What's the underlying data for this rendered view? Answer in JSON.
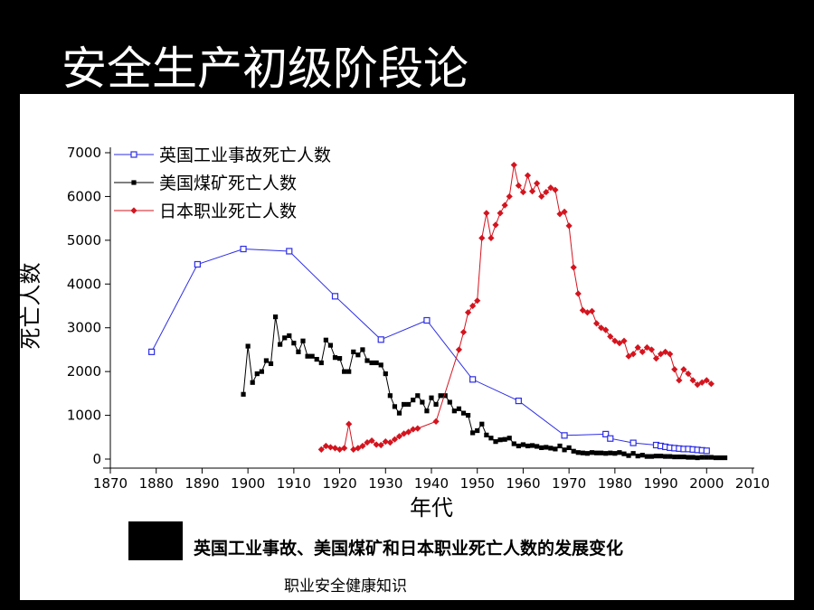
{
  "slide": {
    "title": "安全生产初级阶段论",
    "caption": "英国工业事故、美国煤矿和日本职业死亡人数的发展变化",
    "footer": "职业安全健康知识"
  },
  "chart_data": {
    "type": "line",
    "xlabel": "年代",
    "ylabel": "死亡人数",
    "xlim": [
      1870,
      2010
    ],
    "ylim": [
      0,
      7000
    ],
    "xticks": [
      1870,
      1880,
      1890,
      1900,
      1910,
      1920,
      1930,
      1940,
      1950,
      1960,
      1970,
      1980,
      1990,
      2000,
      2010
    ],
    "yticks": [
      0,
      1000,
      2000,
      3000,
      4000,
      5000,
      6000,
      7000
    ],
    "grid": false,
    "legend_position": "top-left",
    "series": [
      {
        "name": "英国工业事故死亡人数",
        "color": "#2d2de6",
        "marker": "open-square",
        "x": [
          1879,
          1889,
          1899,
          1909,
          1919,
          1929,
          1939,
          1949,
          1959,
          1969,
          1978,
          1979,
          1984,
          1989,
          1990,
          1991,
          1992,
          1993,
          1994,
          1995,
          1996,
          1997,
          1998,
          1999,
          2000
        ],
        "y": [
          2450,
          4450,
          4800,
          4750,
          3720,
          2730,
          3170,
          1820,
          1330,
          540,
          570,
          470,
          370,
          320,
          300,
          280,
          260,
          250,
          240,
          230,
          230,
          220,
          210,
          200,
          190
        ]
      },
      {
        "name": "美国煤矿死亡人数",
        "color": "#000000",
        "marker": "filled-square",
        "x": [
          1899,
          1900,
          1901,
          1902,
          1903,
          1904,
          1905,
          1906,
          1907,
          1908,
          1909,
          1910,
          1911,
          1912,
          1913,
          1914,
          1915,
          1916,
          1917,
          1918,
          1919,
          1920,
          1921,
          1922,
          1923,
          1924,
          1925,
          1926,
          1927,
          1928,
          1929,
          1930,
          1931,
          1932,
          1933,
          1934,
          1935,
          1936,
          1937,
          1938,
          1939,
          1940,
          1941,
          1942,
          1943,
          1944,
          1945,
          1946,
          1947,
          1948,
          1949,
          1950,
          1951,
          1952,
          1953,
          1954,
          1955,
          1956,
          1957,
          1958,
          1959,
          1960,
          1961,
          1962,
          1963,
          1964,
          1965,
          1966,
          1967,
          1968,
          1969,
          1970,
          1971,
          1972,
          1973,
          1974,
          1975,
          1976,
          1977,
          1978,
          1979,
          1980,
          1981,
          1982,
          1983,
          1984,
          1985,
          1986,
          1987,
          1988,
          1989,
          1990,
          1991,
          1992,
          1993,
          1994,
          1995,
          1996,
          1997,
          1998,
          1999,
          2000,
          2001,
          2002,
          2003,
          2004
        ],
        "y": [
          1480,
          2580,
          1750,
          1950,
          2000,
          2250,
          2180,
          3250,
          2620,
          2770,
          2820,
          2650,
          2450,
          2700,
          2350,
          2350,
          2280,
          2200,
          2720,
          2600,
          2320,
          2300,
          2000,
          2000,
          2450,
          2380,
          2500,
          2250,
          2200,
          2200,
          2150,
          1950,
          1450,
          1200,
          1050,
          1250,
          1250,
          1350,
          1450,
          1300,
          1100,
          1400,
          1250,
          1450,
          1450,
          1300,
          1100,
          1150,
          1050,
          1000,
          600,
          650,
          800,
          550,
          480,
          400,
          440,
          450,
          480,
          350,
          300,
          330,
          300,
          310,
          290,
          260,
          270,
          250,
          230,
          300,
          210,
          260,
          180,
          150,
          140,
          130,
          150,
          140,
          140,
          130,
          140,
          130,
          150,
          120,
          80,
          130,
          70,
          90,
          60,
          60,
          70,
          70,
          60,
          60,
          50,
          50,
          50,
          40,
          40,
          30,
          40,
          40,
          40,
          30,
          30,
          30
        ]
      },
      {
        "name": "日本职业死亡人数",
        "color": "#d4141e",
        "marker": "filled-diamond",
        "x": [
          1916,
          1917,
          1918,
          1919,
          1920,
          1921,
          1922,
          1923,
          1924,
          1925,
          1926,
          1927,
          1928,
          1929,
          1930,
          1931,
          1932,
          1933,
          1934,
          1935,
          1936,
          1937,
          1941,
          1946,
          1947,
          1948,
          1949,
          1950,
          1951,
          1952,
          1953,
          1954,
          1955,
          1956,
          1957,
          1958,
          1959,
          1960,
          1961,
          1962,
          1963,
          1964,
          1965,
          1966,
          1967,
          1968,
          1969,
          1970,
          1971,
          1972,
          1973,
          1974,
          1975,
          1976,
          1977,
          1978,
          1979,
          1980,
          1981,
          1982,
          1983,
          1984,
          1985,
          1986,
          1987,
          1988,
          1989,
          1990,
          1991,
          1992,
          1993,
          1994,
          1995,
          1996,
          1997,
          1998,
          1999,
          2000,
          2001
        ],
        "y": [
          220,
          300,
          270,
          250,
          220,
          250,
          800,
          220,
          250,
          300,
          380,
          420,
          330,
          320,
          400,
          380,
          450,
          520,
          580,
          620,
          680,
          700,
          860,
          2500,
          2900,
          3350,
          3500,
          3620,
          5050,
          5620,
          5050,
          5350,
          5620,
          5800,
          6000,
          6720,
          6250,
          6100,
          6480,
          6120,
          6300,
          6000,
          6100,
          6200,
          6150,
          5600,
          5650,
          5330,
          4380,
          3780,
          3400,
          3350,
          3380,
          3100,
          3000,
          2950,
          2800,
          2700,
          2650,
          2700,
          2350,
          2400,
          2550,
          2450,
          2550,
          2500,
          2300,
          2400,
          2450,
          2400,
          2050,
          1800,
          2050,
          1950,
          1800,
          1700,
          1750,
          1800,
          1720
        ]
      }
    ]
  }
}
